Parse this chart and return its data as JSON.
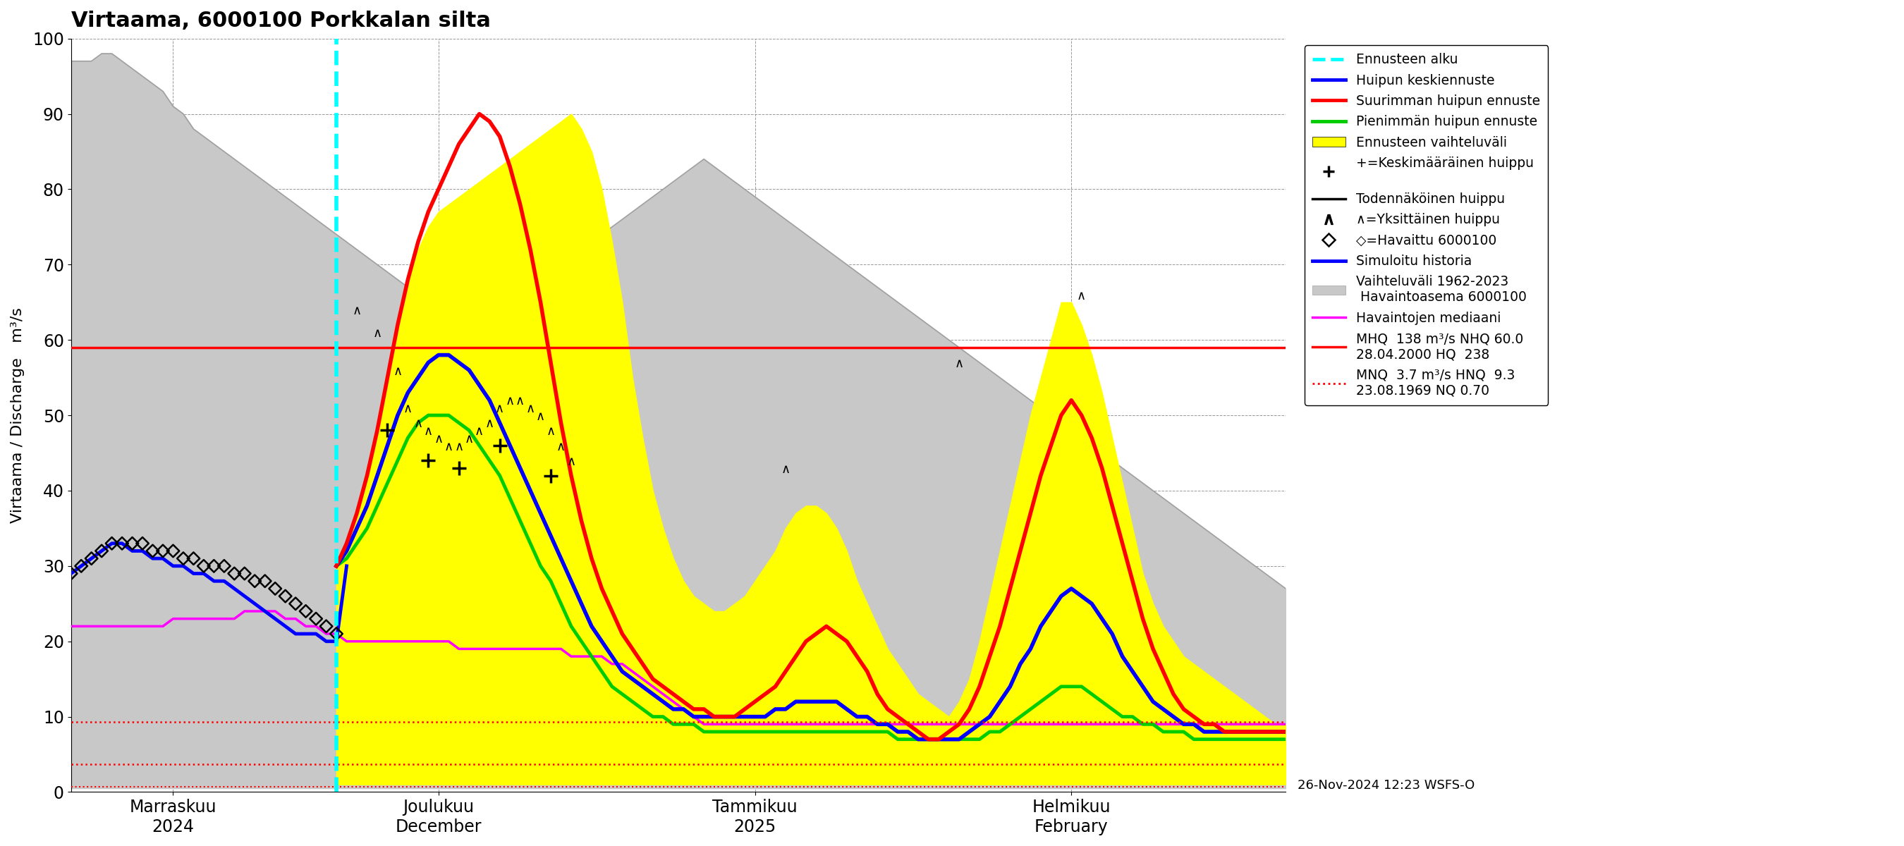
{
  "title": "Virtaama, 6000100 Porkkalan silta",
  "ylabel": "Virtaama / Discharge   m³/s",
  "ylim": [
    0,
    100
  ],
  "yticks": [
    0,
    10,
    20,
    30,
    40,
    50,
    60,
    70,
    80,
    90,
    100
  ],
  "background_color": "#ffffff",
  "hq_line": 59.0,
  "mnq_line": 3.7,
  "hnq_line": 9.3,
  "nq_line": 0.7,
  "date_label": "26-Nov-2024 12:23 WSFS-O",
  "colors": {
    "forecast_start": "#00ffff",
    "huipun_keski": "#0000ff",
    "suurin_huippu": "#ff0000",
    "pienin_huippu": "#00cc00",
    "vaihteluvali_fill": "#ffff00",
    "hist_range_fill": "#c8c8c8",
    "hist_range_edge": "#a0a0a0",
    "mediaani": "#ff00ff",
    "hq_line_color": "#ff0000",
    "sim_hist": "#0000ff"
  },
  "n_days": 120,
  "forecast_start_day": 26,
  "x_tick_days": [
    10,
    36,
    67,
    98
  ],
  "x_tick_labels": [
    "Marraskuu\n2024",
    "Joulukuu\nDecember",
    "Tammikuu\n2025",
    "Helmikuu\nFebruary"
  ],
  "hist_top": [
    97,
    97,
    97,
    98,
    98,
    97,
    96,
    95,
    94,
    93,
    91,
    90,
    88,
    87,
    86,
    85,
    84,
    83,
    82,
    81,
    80,
    79,
    78,
    77,
    76,
    75,
    74,
    73,
    72,
    71,
    70,
    69,
    68,
    67,
    66,
    65,
    64,
    63,
    62,
    61,
    62,
    63,
    64,
    65,
    66,
    67,
    68,
    69,
    70,
    71,
    72,
    73,
    74,
    75,
    76,
    77,
    78,
    79,
    80,
    81,
    82,
    83,
    84,
    83,
    82,
    81,
    80,
    79,
    78,
    77,
    76,
    75,
    74,
    73,
    72,
    71,
    70,
    69,
    68,
    67,
    66,
    65,
    64,
    63,
    62,
    61,
    60,
    59,
    58,
    57,
    56,
    55,
    54,
    53,
    52,
    51,
    50,
    49,
    48,
    47,
    46,
    45,
    44,
    43,
    42,
    41,
    40,
    39,
    38,
    37,
    36,
    35,
    34,
    33,
    32,
    31,
    30,
    29,
    28,
    27
  ],
  "hist_bot": [
    0.5,
    0.5,
    0.5,
    0.5,
    0.5,
    0.5,
    0.5,
    0.5,
    0.5,
    0.5,
    0.5,
    0.5,
    0.5,
    0.5,
    0.5,
    0.5,
    0.5,
    0.5,
    0.5,
    0.5,
    0.5,
    0.5,
    0.5,
    0.5,
    0.5,
    0.5,
    0.5,
    0.5,
    0.5,
    0.5,
    0.5,
    0.5,
    0.5,
    0.5,
    0.5,
    0.5,
    0.5,
    0.5,
    0.5,
    0.5,
    0.5,
    0.5,
    0.5,
    0.5,
    0.5,
    0.5,
    0.5,
    0.5,
    0.5,
    0.5,
    0.5,
    0.5,
    0.5,
    0.5,
    0.5,
    0.5,
    0.5,
    0.5,
    0.5,
    0.5,
    0.5,
    0.5,
    0.5,
    0.5,
    0.5,
    0.5,
    0.5,
    0.5,
    0.5,
    0.5,
    0.5,
    0.5,
    0.5,
    0.5,
    0.5,
    0.5,
    0.5,
    0.5,
    0.5,
    0.5,
    0.5,
    0.5,
    0.5,
    0.5,
    0.5,
    0.5,
    0.5,
    0.5,
    0.5,
    0.5,
    0.5,
    0.5,
    0.5,
    0.5,
    0.5,
    0.5,
    0.5,
    0.5,
    0.5,
    0.5,
    0.5,
    0.5,
    0.5,
    0.5,
    0.5,
    0.5,
    0.5,
    0.5,
    0.5,
    0.5,
    0.5,
    0.5,
    0.5,
    0.5,
    0.5,
    0.5,
    0.5,
    0.5,
    0.5,
    0.5
  ],
  "median_y": [
    22,
    22,
    22,
    22,
    22,
    22,
    22,
    22,
    22,
    22,
    23,
    23,
    23,
    23,
    23,
    23,
    23,
    24,
    24,
    24,
    24,
    23,
    23,
    22,
    22,
    21,
    21,
    20,
    20,
    20,
    20,
    20,
    20,
    20,
    20,
    20,
    20,
    20,
    19,
    19,
    19,
    19,
    19,
    19,
    19,
    19,
    19,
    19,
    19,
    18,
    18,
    18,
    18,
    17,
    17,
    16,
    15,
    14,
    13,
    12,
    11,
    10,
    9,
    9,
    9,
    9,
    9,
    9,
    9,
    9,
    9,
    9,
    9,
    9,
    9,
    9,
    9,
    9,
    9,
    9,
    9,
    9,
    9,
    9,
    9,
    9,
    9,
    9,
    9,
    9,
    9,
    9,
    9,
    9,
    9,
    9,
    9,
    9,
    9,
    9,
    9,
    9,
    9,
    9,
    9,
    9,
    9,
    9,
    9,
    9,
    9,
    9,
    9,
    9,
    9,
    9,
    9,
    9,
    9,
    9
  ],
  "obs_x": [
    0,
    1,
    2,
    3,
    4,
    5,
    6,
    7,
    8,
    9,
    10,
    11,
    12,
    13,
    14,
    15,
    16,
    17,
    18,
    19,
    20,
    21,
    22,
    23,
    24,
    25,
    26
  ],
  "obs_y": [
    29,
    30,
    31,
    32,
    33,
    33,
    33,
    33,
    32,
    32,
    32,
    31,
    31,
    30,
    30,
    30,
    29,
    29,
    28,
    28,
    27,
    26,
    25,
    24,
    23,
    22,
    21
  ],
  "sim_hist_x": [
    0,
    1,
    2,
    3,
    4,
    5,
    6,
    7,
    8,
    9,
    10,
    11,
    12,
    13,
    14,
    15,
    16,
    17,
    18,
    19,
    20,
    21,
    22,
    23,
    24,
    25,
    26,
    27
  ],
  "sim_hist_y": [
    29,
    30,
    31,
    32,
    33,
    33,
    32,
    32,
    31,
    31,
    30,
    30,
    29,
    29,
    28,
    28,
    27,
    26,
    25,
    24,
    23,
    22,
    21,
    21,
    21,
    20,
    20,
    30
  ],
  "fc_band_top": [
    30,
    33,
    37,
    42,
    48,
    55,
    62,
    68,
    72,
    75,
    77,
    78,
    79,
    80,
    81,
    82,
    83,
    84,
    85,
    86,
    87,
    88,
    89,
    90,
    88,
    85,
    80,
    73,
    65,
    55,
    47,
    40,
    35,
    31,
    28,
    26,
    25,
    24,
    24,
    25,
    26,
    28,
    30,
    32,
    35,
    37,
    38,
    38,
    37,
    35,
    32,
    28,
    25,
    22,
    19,
    17,
    15,
    13,
    12,
    11,
    10,
    12,
    15,
    20,
    26,
    32,
    38,
    44,
    50,
    55,
    60,
    65,
    65,
    62,
    58,
    53,
    47,
    41,
    35,
    29,
    25,
    22,
    20,
    18,
    17,
    16,
    15,
    14,
    13,
    12,
    11,
    10,
    9,
    9
  ],
  "fc_band_bot": [
    1,
    1,
    1,
    1,
    1,
    1,
    1,
    1,
    1,
    1,
    1,
    1,
    1,
    1,
    1,
    1,
    1,
    1,
    1,
    1,
    1,
    1,
    1,
    1,
    1,
    1,
    1,
    1,
    1,
    1,
    1,
    1,
    1,
    1,
    1,
    1,
    1,
    1,
    1,
    1,
    1,
    1,
    1,
    1,
    1,
    1,
    1,
    1,
    1,
    1,
    1,
    1,
    1,
    1,
    1,
    1,
    1,
    1,
    1,
    1,
    1,
    1,
    1,
    1,
    1,
    1,
    1,
    1,
    1,
    1,
    1,
    1,
    1,
    1,
    1,
    1,
    1,
    1,
    1,
    1,
    1,
    1,
    1,
    1,
    1,
    1,
    1,
    1,
    1,
    1,
    1,
    1,
    1,
    1
  ],
  "red_y": [
    30,
    33,
    37,
    42,
    48,
    55,
    62,
    68,
    73,
    77,
    80,
    83,
    86,
    88,
    90,
    89,
    87,
    83,
    78,
    72,
    65,
    57,
    49,
    42,
    36,
    31,
    27,
    24,
    21,
    19,
    17,
    15,
    14,
    13,
    12,
    11,
    11,
    10,
    10,
    10,
    11,
    12,
    13,
    14,
    16,
    18,
    20,
    21,
    22,
    21,
    20,
    18,
    16,
    13,
    11,
    10,
    9,
    8,
    7,
    7,
    8,
    9,
    11,
    14,
    18,
    22,
    27,
    32,
    37,
    42,
    46,
    50,
    52,
    50,
    47,
    43,
    38,
    33,
    28,
    23,
    19,
    16,
    13,
    11,
    10,
    9,
    9,
    8,
    8,
    8,
    8,
    8,
    8,
    8
  ],
  "blue_y": [
    30,
    32,
    35,
    38,
    42,
    46,
    50,
    53,
    55,
    57,
    58,
    58,
    57,
    56,
    54,
    52,
    49,
    46,
    43,
    40,
    37,
    34,
    31,
    28,
    25,
    22,
    20,
    18,
    16,
    15,
    14,
    13,
    12,
    11,
    11,
    10,
    10,
    10,
    10,
    10,
    10,
    10,
    10,
    11,
    11,
    12,
    12,
    12,
    12,
    12,
    11,
    10,
    10,
    9,
    9,
    8,
    8,
    7,
    7,
    7,
    7,
    7,
    8,
    9,
    10,
    12,
    14,
    17,
    19,
    22,
    24,
    26,
    27,
    26,
    25,
    23,
    21,
    18,
    16,
    14,
    12,
    11,
    10,
    9,
    9,
    8,
    8,
    8,
    8,
    8,
    8,
    8,
    8,
    8
  ],
  "green_y": [
    30,
    31,
    33,
    35,
    38,
    41,
    44,
    47,
    49,
    50,
    50,
    50,
    49,
    48,
    46,
    44,
    42,
    39,
    36,
    33,
    30,
    28,
    25,
    22,
    20,
    18,
    16,
    14,
    13,
    12,
    11,
    10,
    10,
    9,
    9,
    9,
    8,
    8,
    8,
    8,
    8,
    8,
    8,
    8,
    8,
    8,
    8,
    8,
    8,
    8,
    8,
    8,
    8,
    8,
    8,
    7,
    7,
    7,
    7,
    7,
    7,
    7,
    7,
    7,
    8,
    8,
    9,
    10,
    11,
    12,
    13,
    14,
    14,
    14,
    13,
    12,
    11,
    10,
    10,
    9,
    9,
    8,
    8,
    8,
    7,
    7,
    7,
    7,
    7,
    7,
    7,
    7,
    7,
    7
  ],
  "peak_markers": [
    [
      28,
      63
    ],
    [
      30,
      60
    ],
    [
      32,
      55
    ],
    [
      33,
      50
    ],
    [
      34,
      48
    ],
    [
      35,
      47
    ],
    [
      36,
      46
    ],
    [
      37,
      45
    ],
    [
      38,
      45
    ],
    [
      39,
      46
    ],
    [
      40,
      47
    ],
    [
      41,
      48
    ],
    [
      42,
      50
    ],
    [
      43,
      51
    ],
    [
      44,
      51
    ],
    [
      45,
      50
    ],
    [
      46,
      49
    ],
    [
      47,
      47
    ],
    [
      48,
      45
    ],
    [
      49,
      43
    ],
    [
      70,
      42
    ],
    [
      87,
      56
    ],
    [
      99,
      65
    ]
  ],
  "mean_peak_markers": [
    [
      31,
      48
    ],
    [
      35,
      44
    ],
    [
      38,
      43
    ],
    [
      42,
      46
    ],
    [
      47,
      42
    ]
  ]
}
